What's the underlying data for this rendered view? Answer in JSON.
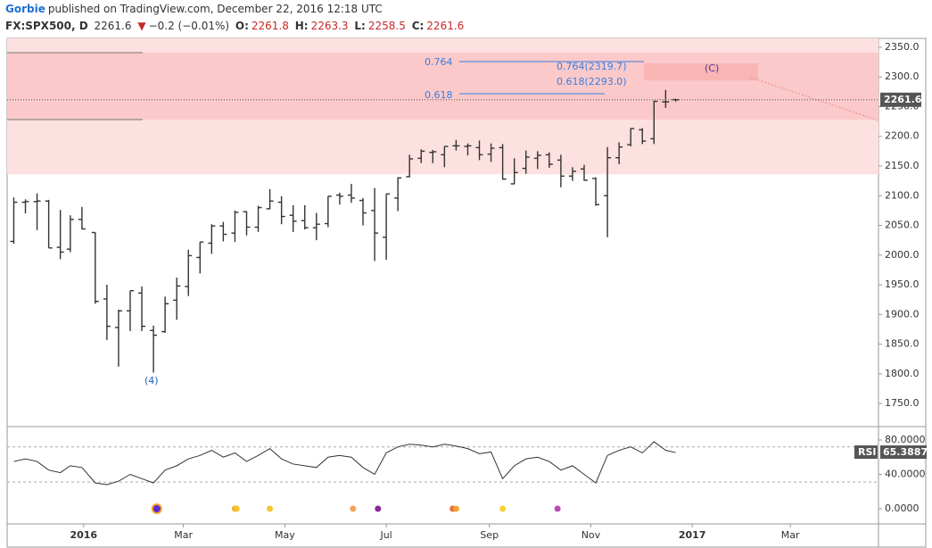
{
  "header": {
    "author": "Gorbie",
    "published": "published on TradingView.com, December 22, 2016 12:18 UTC",
    "symbol": "FX:SPX500, D",
    "change": "−0.2 (−0.01%)",
    "o_label": "O:",
    "h_label": "H:",
    "l_label": "L:",
    "c_label": "C:"
  },
  "chart_data": {
    "type": "ohlc",
    "color": "#333333",
    "x": [
      "2015-11-20",
      "2015-11-27",
      "2015-12-04",
      "2015-12-11",
      "2015-12-18",
      "2015-12-24",
      "2015-12-31",
      "2016-01-08",
      "2016-01-15",
      "2016-01-22",
      "2016-01-29",
      "2016-02-05",
      "2016-02-12",
      "2016-02-19",
      "2016-02-26",
      "2016-03-04",
      "2016-03-11",
      "2016-03-18",
      "2016-03-25",
      "2016-04-01",
      "2016-04-08",
      "2016-04-15",
      "2016-04-22",
      "2016-04-29",
      "2016-05-06",
      "2016-05-13",
      "2016-05-20",
      "2016-05-27",
      "2016-06-03",
      "2016-06-10",
      "2016-06-17",
      "2016-06-24",
      "2016-07-01",
      "2016-07-08",
      "2016-07-15",
      "2016-07-22",
      "2016-07-29",
      "2016-08-05",
      "2016-08-12",
      "2016-08-19",
      "2016-08-26",
      "2016-09-02",
      "2016-09-09",
      "2016-09-16",
      "2016-09-23",
      "2016-09-30",
      "2016-10-07",
      "2016-10-14",
      "2016-10-21",
      "2016-10-28",
      "2016-11-04",
      "2016-11-11",
      "2016-11-18",
      "2016-11-25",
      "2016-12-02",
      "2016-12-09",
      "2016-12-16",
      "2016-12-22"
    ],
    "open": [
      2023,
      2089,
      2090,
      2091,
      2013,
      2010,
      2060,
      2038,
      1926,
      1878,
      1906,
      1936,
      1873,
      1871,
      1924,
      1947,
      1996,
      2020,
      2049,
      2037,
      2073,
      2047,
      2078,
      2089,
      2067,
      2058,
      2046,
      2053,
      2101,
      2101,
      2092,
      2075,
      2030,
      2096,
      2132,
      2163,
      2173,
      2169,
      2184,
      2183,
      2181,
      2170,
      2181,
      2120,
      2146,
      2163,
      2169,
      2160,
      2133,
      2145,
      2129,
      2100,
      2164,
      2186,
      2211,
      2196,
      2258,
      2261.8
    ],
    "high": [
      2097,
      2094,
      2104,
      2093,
      2076,
      2067,
      2081,
      2038,
      1950,
      1908,
      1940,
      1947,
      1881,
      1930,
      1962,
      2009,
      2022,
      2052,
      2056,
      2075,
      2074,
      2083,
      2111,
      2099,
      2084,
      2084,
      2071,
      2099,
      2105,
      2120,
      2096,
      2113,
      2103,
      2131,
      2169,
      2178,
      2177,
      2183,
      2194,
      2188,
      2193,
      2188,
      2187,
      2163,
      2176,
      2175,
      2173,
      2169,
      2148,
      2152,
      2131,
      2182,
      2190,
      2214,
      2214,
      2260,
      2278,
      2263.3
    ],
    "low": [
      2019,
      2070,
      2042,
      2012,
      1993,
      2005,
      2043,
      1918,
      1857,
      1812,
      1872,
      1872,
      1802,
      1869,
      1891,
      1931,
      1969,
      2002,
      2023,
      2022,
      2033,
      2039,
      2077,
      2052,
      2039,
      2043,
      2025,
      2047,
      2085,
      2088,
      2050,
      1990,
      1992,
      2074,
      2131,
      2155,
      2155,
      2148,
      2176,
      2168,
      2160,
      2157,
      2127,
      2119,
      2137,
      2145,
      2147,
      2114,
      2125,
      2125,
      2083,
      2030,
      2153,
      2183,
      2187,
      2187,
      2248,
      2258.5
    ],
    "close": [
      2089,
      2090,
      2091,
      2012,
      2005,
      2060,
      2044,
      1922,
      1880,
      1906,
      1940,
      1880,
      1865,
      1918,
      1948,
      1999,
      2022,
      2049,
      2035,
      2072,
      2047,
      2080,
      2091,
      2065,
      2057,
      2046,
      2052,
      2099,
      2099,
      2096,
      2071,
      2037,
      2103,
      2130,
      2162,
      2175,
      2174,
      2183,
      2184,
      2184,
      2169,
      2180,
      2128,
      2139,
      2165,
      2168,
      2153,
      2133,
      2141,
      2126,
      2085,
      2164,
      2182,
      2213,
      2192,
      2259,
      2258,
      2261.6
    ],
    "ylim": [
      1711,
      2365
    ],
    "yticks": [
      {
        "value": 1750,
        "label": "1750.0"
      },
      {
        "value": 1800,
        "label": "1800.0"
      },
      {
        "value": 1850,
        "label": "1850.0"
      },
      {
        "value": 1900,
        "label": "1900.0"
      },
      {
        "value": 1950,
        "label": "1950.0"
      },
      {
        "value": 2000,
        "label": "2000.0"
      },
      {
        "value": 2050,
        "label": "2050.0"
      },
      {
        "value": 2100,
        "label": "2100.0"
      },
      {
        "value": 2150,
        "label": "2150.0"
      },
      {
        "value": 2200,
        "label": "2200.0"
      },
      {
        "value": 2250,
        "label": "2250.0"
      },
      {
        "value": 2300,
        "label": "2300.0"
      },
      {
        "value": 2350,
        "label": "2350.0"
      }
    ],
    "xlim": [
      "2015-11-16",
      "2017-04-23"
    ],
    "xticks": [
      {
        "value": "2016-01-01",
        "label": "2016"
      },
      {
        "value": "2016-03-01",
        "label": "Mar"
      },
      {
        "value": "2016-05-01",
        "label": "May"
      },
      {
        "value": "2016-07-01",
        "label": "Jul"
      },
      {
        "value": "2016-09-01",
        "label": "Sep"
      },
      {
        "value": "2016-11-01",
        "label": "Nov"
      },
      {
        "value": "2017-01-01",
        "label": "2017"
      },
      {
        "value": "2017-03-01",
        "label": "Mar"
      }
    ],
    "zones": [
      {
        "low": 2136,
        "high": 2365,
        "color": "#fde0e0"
      },
      {
        "low": 2228,
        "high": 2341,
        "color": "#fbc9c9"
      },
      {
        "low": 2294,
        "high": 2323,
        "color": "#f9b4b4"
      }
    ],
    "annotations": [
      {
        "text": "0.764"
      },
      {
        "text": "0.618"
      },
      {
        "text": "0.764(2319.7)"
      },
      {
        "text": "0.618(2293.0)"
      },
      {
        "text": "(C)"
      },
      {
        "text": "(4)"
      }
    ],
    "rsi": {
      "name": "RSI",
      "color": "#333333",
      "values": [
        55,
        58,
        55,
        45,
        42,
        50,
        48,
        30,
        28,
        32,
        40,
        35,
        30,
        45,
        50,
        58,
        62,
        68,
        60,
        65,
        55,
        62,
        70,
        58,
        52,
        50,
        48,
        60,
        62,
        60,
        48,
        40,
        65,
        72,
        75,
        74,
        72,
        75,
        73,
        70,
        64,
        66,
        35,
        50,
        58,
        60,
        55,
        45,
        50,
        40,
        30,
        62,
        68,
        72,
        65,
        78,
        68,
        65.3887
      ],
      "ylim": [
        -15.6,
        93.5
      ],
      "levels": [
        72,
        31
      ],
      "yticks": [
        {
          "value": 0,
          "label": "0.0000"
        },
        {
          "value": 40,
          "label": "40.0000"
        },
        {
          "value": 80,
          "label": "80.0000"
        }
      ],
      "signals": {
        "x": [
          "2016-02-14",
          "2016-04-01",
          "2016-04-02",
          "2016-04-22",
          "2016-06-11",
          "2016-06-26",
          "2016-08-10",
          "2016-08-12",
          "2016-09-09",
          "2016-10-12"
        ],
        "colors": [
          "#5b2bd1",
          "#f7a531",
          "#f5c530",
          "#f7c530",
          "#f3a35a",
          "#8a2a9a",
          "#f06a3a",
          "#f7a531",
          "#f7d030",
          "#b54ab5"
        ]
      }
    }
  }
}
